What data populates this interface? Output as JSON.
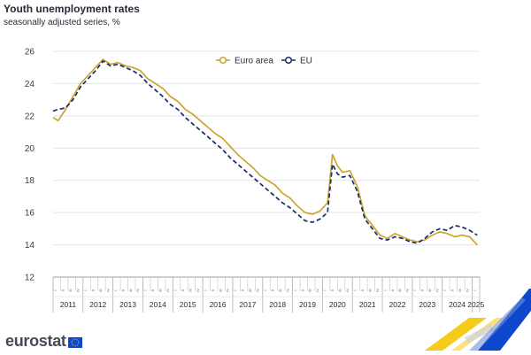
{
  "header": {
    "title": "Youth unemployment rates",
    "subtitle": "seasonally adjusted series, %"
  },
  "brand": {
    "name": "eurostat",
    "icon": "eu-flag-icon"
  },
  "colors": {
    "euro_area": "#c9a72d",
    "eu": "#1b2a6b",
    "grid": "#e3e4e8",
    "axis": "#9aa0a6",
    "logo_blue": "#0e47cb",
    "logo_yellow": "#f3c500"
  },
  "chart_data": {
    "type": "line",
    "title": "Youth unemployment rates",
    "subtitle": "seasonally adjusted series, %",
    "xlabel": "",
    "ylabel": "",
    "ylim": [
      12,
      26
    ],
    "yticks": [
      12,
      14,
      16,
      18,
      20,
      22,
      24,
      26
    ],
    "grid": true,
    "legend_position": "top-center",
    "x_start": "2011-01",
    "x_end": "2025-03",
    "x_frequency": "monthly",
    "quarter_labels": [
      "I",
      "II",
      "III",
      "IV"
    ],
    "years": [
      "2011",
      "2012",
      "2013",
      "2014",
      "2015",
      "2016",
      "2017",
      "2018",
      "2019",
      "2020",
      "2021",
      "2022",
      "2023",
      "2024",
      "2025"
    ],
    "series": [
      {
        "name": "Euro area",
        "style": "solid",
        "color": "#c9a72d",
        "points": [
          [
            "2011-01",
            21.9
          ],
          [
            "2011-03",
            21.7
          ],
          [
            "2011-06",
            22.4
          ],
          [
            "2011-09",
            23.2
          ],
          [
            "2011-12",
            24.0
          ],
          [
            "2012-03",
            24.5
          ],
          [
            "2012-06",
            25.0
          ],
          [
            "2012-09",
            25.5
          ],
          [
            "2012-12",
            25.2
          ],
          [
            "2013-03",
            25.3
          ],
          [
            "2013-06",
            25.1
          ],
          [
            "2013-09",
            25.0
          ],
          [
            "2013-12",
            24.8
          ],
          [
            "2014-03",
            24.3
          ],
          [
            "2014-06",
            24.0
          ],
          [
            "2014-09",
            23.7
          ],
          [
            "2014-12",
            23.2
          ],
          [
            "2015-03",
            22.9
          ],
          [
            "2015-06",
            22.4
          ],
          [
            "2015-09",
            22.1
          ],
          [
            "2015-12",
            21.7
          ],
          [
            "2016-03",
            21.3
          ],
          [
            "2016-06",
            20.9
          ],
          [
            "2016-09",
            20.6
          ],
          [
            "2016-12",
            20.1
          ],
          [
            "2017-03",
            19.6
          ],
          [
            "2017-06",
            19.2
          ],
          [
            "2017-09",
            18.8
          ],
          [
            "2017-12",
            18.3
          ],
          [
            "2018-03",
            18.0
          ],
          [
            "2018-06",
            17.7
          ],
          [
            "2018-09",
            17.2
          ],
          [
            "2018-12",
            16.9
          ],
          [
            "2019-03",
            16.4
          ],
          [
            "2019-06",
            16.0
          ],
          [
            "2019-09",
            15.9
          ],
          [
            "2019-12",
            16.1
          ],
          [
            "2020-03",
            16.6
          ],
          [
            "2020-05",
            19.6
          ],
          [
            "2020-07",
            18.9
          ],
          [
            "2020-09",
            18.5
          ],
          [
            "2020-12",
            18.6
          ],
          [
            "2021-03",
            17.6
          ],
          [
            "2021-06",
            15.8
          ],
          [
            "2021-09",
            15.2
          ],
          [
            "2021-12",
            14.6
          ],
          [
            "2022-03",
            14.4
          ],
          [
            "2022-06",
            14.7
          ],
          [
            "2022-09",
            14.5
          ],
          [
            "2022-12",
            14.3
          ],
          [
            "2023-03",
            14.2
          ],
          [
            "2023-06",
            14.3
          ],
          [
            "2023-09",
            14.6
          ],
          [
            "2023-12",
            14.8
          ],
          [
            "2024-03",
            14.7
          ],
          [
            "2024-06",
            14.5
          ],
          [
            "2024-09",
            14.6
          ],
          [
            "2024-12",
            14.5
          ],
          [
            "2025-03",
            14.0
          ]
        ]
      },
      {
        "name": "EU",
        "style": "dashed",
        "color": "#1b2a6b",
        "points": [
          [
            "2011-01",
            22.3
          ],
          [
            "2011-03",
            22.4
          ],
          [
            "2011-06",
            22.5
          ],
          [
            "2011-09",
            23.0
          ],
          [
            "2011-12",
            23.8
          ],
          [
            "2012-03",
            24.3
          ],
          [
            "2012-06",
            24.8
          ],
          [
            "2012-09",
            25.4
          ],
          [
            "2012-12",
            25.1
          ],
          [
            "2013-03",
            25.2
          ],
          [
            "2013-06",
            25.0
          ],
          [
            "2013-09",
            24.8
          ],
          [
            "2013-12",
            24.5
          ],
          [
            "2014-03",
            24.0
          ],
          [
            "2014-06",
            23.6
          ],
          [
            "2014-09",
            23.2
          ],
          [
            "2014-12",
            22.7
          ],
          [
            "2015-03",
            22.4
          ],
          [
            "2015-06",
            21.9
          ],
          [
            "2015-09",
            21.5
          ],
          [
            "2015-12",
            21.1
          ],
          [
            "2016-03",
            20.7
          ],
          [
            "2016-06",
            20.3
          ],
          [
            "2016-09",
            19.9
          ],
          [
            "2016-12",
            19.4
          ],
          [
            "2017-03",
            19.0
          ],
          [
            "2017-06",
            18.6
          ],
          [
            "2017-09",
            18.2
          ],
          [
            "2017-12",
            17.8
          ],
          [
            "2018-03",
            17.4
          ],
          [
            "2018-06",
            17.0
          ],
          [
            "2018-09",
            16.6
          ],
          [
            "2018-12",
            16.3
          ],
          [
            "2019-03",
            15.9
          ],
          [
            "2019-06",
            15.5
          ],
          [
            "2019-09",
            15.4
          ],
          [
            "2019-12",
            15.6
          ],
          [
            "2020-03",
            16.0
          ],
          [
            "2020-05",
            19.0
          ],
          [
            "2020-07",
            18.4
          ],
          [
            "2020-09",
            18.2
          ],
          [
            "2020-12",
            18.3
          ],
          [
            "2021-03",
            17.3
          ],
          [
            "2021-06",
            15.6
          ],
          [
            "2021-09",
            15.0
          ],
          [
            "2021-12",
            14.4
          ],
          [
            "2022-03",
            14.3
          ],
          [
            "2022-06",
            14.5
          ],
          [
            "2022-09",
            14.4
          ],
          [
            "2022-12",
            14.2
          ],
          [
            "2023-03",
            14.1
          ],
          [
            "2023-06",
            14.4
          ],
          [
            "2023-09",
            14.8
          ],
          [
            "2023-12",
            15.0
          ],
          [
            "2024-03",
            14.9
          ],
          [
            "2024-06",
            15.2
          ],
          [
            "2024-09",
            15.1
          ],
          [
            "2024-12",
            14.9
          ],
          [
            "2025-03",
            14.6
          ]
        ]
      }
    ]
  }
}
